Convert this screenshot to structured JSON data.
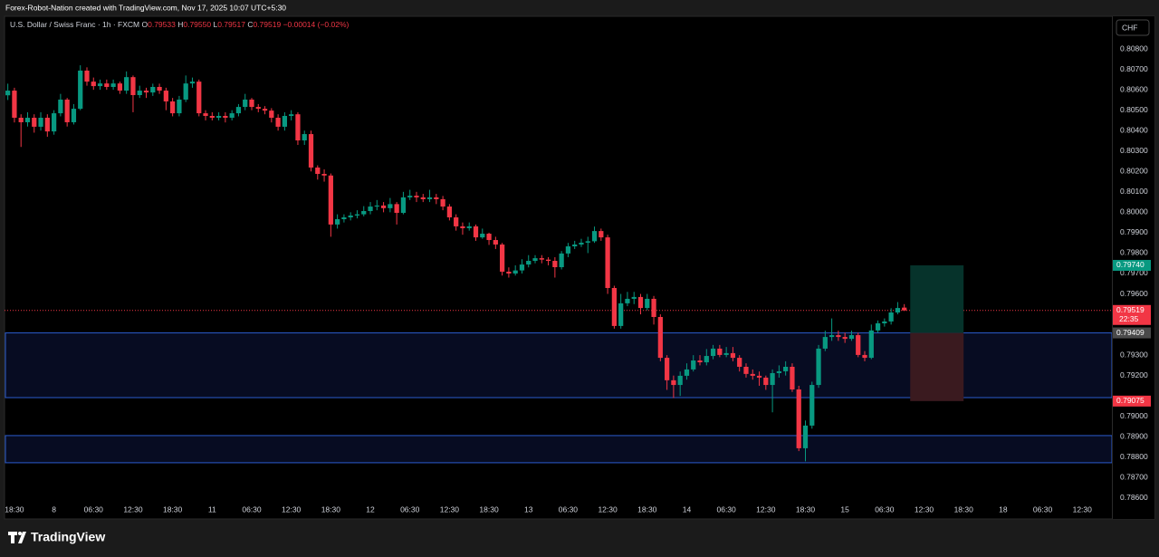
{
  "chart_data": {
    "type": "candlestick",
    "watermark": "Forex-Robot-Nation created with TradingView.com, Nov 17, 2025 10:07 UTC+5:30",
    "legend": {
      "symbol": "U.S. Dollar / Swiss Franc · 1h · FXCM",
      "o": "O",
      "h": "H",
      "l": "L",
      "c": "C",
      "high_label": "0.79550",
      "change": "−0.00014 (−0.02%)"
    },
    "currency": "CHF",
    "countdown": "22:35",
    "brand": "TradingView",
    "up_color": "#089981",
    "down_color": "#f23645",
    "ylim": [
      0.78502,
      0.8096
    ],
    "yticks": [
      {
        "value": 0.808,
        "label": "0.80800"
      },
      {
        "value": 0.807,
        "label": "0.80700"
      },
      {
        "value": 0.806,
        "label": "0.80600"
      },
      {
        "value": 0.805,
        "label": "0.80500"
      },
      {
        "value": 0.804,
        "label": "0.80400"
      },
      {
        "value": 0.803,
        "label": "0.80300"
      },
      {
        "value": 0.802,
        "label": "0.80200"
      },
      {
        "value": 0.801,
        "label": "0.80100"
      },
      {
        "value": 0.8,
        "label": "0.80000"
      },
      {
        "value": 0.799,
        "label": "0.79900"
      },
      {
        "value": 0.798,
        "label": "0.79800"
      },
      {
        "value": 0.797,
        "label": "0.79700"
      },
      {
        "value": 0.796,
        "label": "0.79600"
      },
      {
        "value": 0.793,
        "label": "0.79300"
      },
      {
        "value": 0.792,
        "label": "0.79200"
      },
      {
        "value": 0.79,
        "label": "0.79000"
      },
      {
        "value": 0.789,
        "label": "0.78900"
      },
      {
        "value": 0.788,
        "label": "0.78800"
      },
      {
        "value": 0.787,
        "label": "0.78700"
      },
      {
        "value": 0.786,
        "label": "0.78600"
      }
    ],
    "zones": [
      {
        "top": 0.79409,
        "bottom": 0.79092
      },
      {
        "top": 0.78906,
        "bottom": 0.78773
      }
    ],
    "position": {
      "target": {
        "value": 0.7974,
        "label": "0.79740"
      },
      "entry": 0.79409,
      "stop": 0.79075
    },
    "categories": [
      null,
      "18:30",
      null,
      null,
      null,
      null,
      null,
      "8",
      null,
      null,
      null,
      null,
      null,
      "06:30",
      null,
      null,
      null,
      null,
      null,
      "12:30",
      null,
      null,
      null,
      null,
      null,
      "18:30",
      null,
      null,
      null,
      null,
      null,
      "11",
      null,
      null,
      null,
      null,
      null,
      "06:30",
      null,
      null,
      null,
      null,
      null,
      "12:30",
      null,
      null,
      null,
      null,
      null,
      "18:30",
      null,
      null,
      null,
      null,
      null,
      "12",
      null,
      null,
      null,
      null,
      null,
      "06:30",
      null,
      null,
      null,
      null,
      null,
      "12:30",
      null,
      null,
      null,
      null,
      null,
      "18:30",
      null,
      null,
      null,
      null,
      null,
      "13",
      null,
      null,
      null,
      null,
      null,
      "06:30",
      null,
      null,
      null,
      null,
      null,
      "12:30",
      null,
      null,
      null,
      null,
      null,
      "18:30",
      null,
      null,
      null,
      null,
      null,
      "14",
      null,
      null,
      null,
      null,
      null,
      "06:30",
      null,
      null,
      null,
      null,
      null,
      "12:30",
      null,
      null,
      null,
      null,
      null,
      "18:30",
      null,
      null,
      null,
      null,
      null,
      "15",
      null,
      null,
      null,
      null,
      null,
      "06:30",
      null,
      null,
      null,
      null,
      null,
      "12:30",
      null,
      null,
      null,
      null,
      null,
      "18:30",
      null,
      null,
      null,
      null,
      null,
      "18",
      null,
      null,
      null,
      null,
      null,
      "06:30",
      null,
      null,
      null,
      null,
      null,
      "12:30",
      null,
      null,
      null,
      null
    ],
    "open": [
      0.80573,
      0.80596,
      0.80463,
      0.80441,
      0.80463,
      0.80419,
      0.80463,
      0.80396,
      0.80485,
      0.80552,
      0.80441,
      0.80507,
      0.80694,
      0.8064,
      0.80618,
      0.80631,
      0.80614,
      0.80631,
      0.80596,
      0.80662,
      0.80574,
      0.80596,
      0.80587,
      0.80614,
      0.80596,
      0.80543,
      0.80485,
      0.80552,
      0.80631,
      0.8064,
      0.80485,
      0.80472,
      0.80463,
      0.80472,
      0.80463,
      0.80485,
      0.80516,
      0.80552,
      0.80516,
      0.80507,
      0.80498,
      0.80463,
      0.80419,
      0.80472,
      0.8048,
      0.80352,
      0.80383,
      0.80219,
      0.80188,
      0.8018,
      0.7994,
      0.79966,
      0.79975,
      0.79984,
      0.7999,
      0.80006,
      0.80028,
      0.80033,
      0.8002,
      0.8004,
      0.79997,
      0.80073,
      0.80081,
      0.80073,
      0.80064,
      0.80073,
      0.80064,
      0.80028,
      0.79975,
      0.79931,
      0.79922,
      0.79931,
      0.79877,
      0.79895,
      0.79864,
      0.79842,
      0.79709,
      0.797,
      0.79715,
      0.79744,
      0.79762,
      0.79775,
      0.79768,
      0.79762,
      0.79731,
      0.79798,
      0.79833,
      0.79842,
      0.79851,
      0.79858,
      0.79908,
      0.79877,
      0.79629,
      0.79443,
      0.79554,
      0.79576,
      0.79585,
      0.79531,
      0.79576,
      0.79487,
      0.79287,
      0.79177,
      0.79154,
      0.79199,
      0.7923,
      0.79274,
      0.79265,
      0.79296,
      0.79332,
      0.79301,
      0.7931,
      0.79287,
      0.79243,
      0.79208,
      0.79199,
      0.7919,
      0.79154,
      0.79212,
      0.79221,
      0.79243,
      0.79132,
      0.78844,
      0.78955,
      0.79154,
      0.79332,
      0.79389,
      0.79398,
      0.79389,
      0.7938,
      0.79398,
      0.79301,
      0.79287,
      0.79421,
      0.79456,
      0.79465,
      0.79509,
      0.79533,
      null,
      null,
      null,
      null,
      null,
      null,
      null,
      null,
      null,
      null,
      null,
      null,
      null,
      null,
      null,
      null,
      null,
      null,
      null,
      null,
      null,
      null,
      null,
      null,
      null,
      null,
      null,
      null,
      null,
      null,
      null
    ],
    "high": [
      0.8063,
      0.8061,
      0.8048,
      0.8049,
      0.8048,
      0.8049,
      0.8048,
      0.805,
      0.8058,
      0.8056,
      0.8053,
      0.8072,
      0.8071,
      0.8066,
      0.8065,
      0.8065,
      0.8065,
      0.8064,
      0.8069,
      0.8067,
      0.8062,
      0.8061,
      0.8063,
      0.8063,
      0.8061,
      0.8056,
      0.8057,
      0.8067,
      0.8066,
      0.8065,
      0.805,
      0.8049,
      0.8049,
      0.8049,
      0.805,
      0.8053,
      0.8058,
      0.8056,
      0.8053,
      0.8052,
      0.8051,
      0.8048,
      0.8049,
      0.805,
      0.8049,
      0.804,
      0.804,
      0.8023,
      0.8021,
      0.8019,
      0.7999,
      0.7999,
      0.8,
      0.8001,
      0.8003,
      0.8005,
      0.8006,
      0.8005,
      0.8007,
      0.8005,
      0.801,
      0.8011,
      0.801,
      0.8009,
      0.8011,
      0.8009,
      0.8008,
      0.8004,
      0.7999,
      0.7995,
      0.7995,
      0.7994,
      0.7992,
      0.799,
      0.7988,
      0.7985,
      0.7973,
      0.7974,
      0.7977,
      0.7979,
      0.7979,
      0.7979,
      0.7978,
      0.7978,
      0.7981,
      0.7985,
      0.7986,
      0.7987,
      0.7988,
      0.7993,
      0.7992,
      0.7989,
      0.7964,
      0.796,
      0.7961,
      0.7961,
      0.796,
      0.796,
      0.7959,
      0.795,
      0.793,
      0.792,
      0.7922,
      0.7926,
      0.793,
      0.793,
      0.7933,
      0.7935,
      0.7935,
      0.7934,
      0.7934,
      0.793,
      0.7926,
      0.7923,
      0.7922,
      0.792,
      0.7923,
      0.7925,
      0.7927,
      0.7926,
      0.7915,
      0.7898,
      0.7917,
      0.7935,
      0.7942,
      0.7948,
      0.7942,
      0.7941,
      0.7942,
      0.7941,
      0.7932,
      0.7945,
      0.7947,
      0.7948,
      0.7953,
      0.7956,
      0.7955,
      null,
      null,
      null,
      null,
      null,
      null,
      null,
      null,
      null,
      null,
      null,
      null,
      null,
      null,
      null,
      null,
      null,
      null,
      null,
      null,
      null,
      null,
      null,
      null,
      null,
      null,
      null,
      null,
      null,
      null,
      null
    ],
    "low": [
      0.8055,
      0.8044,
      0.8032,
      0.8042,
      0.8039,
      0.804,
      0.8037,
      0.8038,
      0.8047,
      0.8042,
      0.8043,
      0.805,
      0.8062,
      0.806,
      0.806,
      0.806,
      0.806,
      0.8058,
      0.8058,
      0.8049,
      0.8056,
      0.8056,
      0.8057,
      0.8058,
      0.805,
      0.8047,
      0.8047,
      0.8054,
      0.8061,
      0.8047,
      0.8045,
      0.8045,
      0.8045,
      0.8044,
      0.8045,
      0.8047,
      0.805,
      0.805,
      0.8049,
      0.8048,
      0.8044,
      0.804,
      0.804,
      0.8045,
      0.8033,
      0.8033,
      0.802,
      0.8016,
      0.8015,
      0.7988,
      0.7992,
      0.7995,
      0.7996,
      0.7997,
      0.7998,
      0.7999,
      0.8001,
      0.8,
      0.8,
      0.7994,
      0.7999,
      0.8006,
      0.8005,
      0.8005,
      0.8005,
      0.8004,
      0.8001,
      0.7996,
      0.7991,
      0.7989,
      0.7991,
      0.7986,
      0.7987,
      0.7984,
      0.7982,
      0.7969,
      0.7968,
      0.7969,
      0.797,
      0.7973,
      0.7975,
      0.7975,
      0.7974,
      0.7968,
      0.7972,
      0.7978,
      0.7982,
      0.7983,
      0.798,
      0.7985,
      0.7986,
      0.796,
      0.7943,
      0.7943,
      0.7954,
      0.7955,
      0.795,
      0.7952,
      0.7945,
      0.7927,
      0.7913,
      0.7909,
      0.791,
      0.7918,
      0.7922,
      0.7925,
      0.7925,
      0.7928,
      0.7929,
      0.7929,
      0.7927,
      0.7922,
      0.7919,
      0.7918,
      0.7915,
      0.7913,
      0.7902,
      0.7919,
      0.792,
      0.7912,
      0.7883,
      0.7878,
      0.7894,
      0.7914,
      0.7932,
      0.7937,
      0.7937,
      0.7936,
      0.7937,
      0.7929,
      0.7927,
      0.7928,
      0.7941,
      0.7944,
      0.7945,
      0.795,
      0.79517,
      null,
      null,
      null,
      null,
      null,
      null,
      null,
      null,
      null,
      null,
      null,
      null,
      null,
      null,
      null,
      null,
      null,
      null,
      null,
      null,
      null,
      null,
      null,
      null,
      null,
      null,
      null,
      null,
      null,
      null,
      null
    ],
    "close": [
      0.80596,
      0.80463,
      0.80441,
      0.80463,
      0.80419,
      0.80463,
      0.80396,
      0.80485,
      0.80552,
      0.80441,
      0.80507,
      0.80694,
      0.8064,
      0.80618,
      0.80631,
      0.80614,
      0.80631,
      0.80596,
      0.80662,
      0.80574,
      0.80596,
      0.80587,
      0.80614,
      0.80596,
      0.80543,
      0.80485,
      0.80552,
      0.80631,
      0.8064,
      0.80485,
      0.80472,
      0.80463,
      0.80472,
      0.80463,
      0.80485,
      0.80516,
      0.80552,
      0.80516,
      0.80507,
      0.80498,
      0.80463,
      0.80419,
      0.80472,
      0.8048,
      0.80352,
      0.80383,
      0.80219,
      0.80188,
      0.8018,
      0.7994,
      0.79966,
      0.79975,
      0.79984,
      0.7999,
      0.80006,
      0.80028,
      0.80033,
      0.8002,
      0.8004,
      0.79997,
      0.80073,
      0.80081,
      0.80073,
      0.80064,
      0.80073,
      0.80064,
      0.80028,
      0.79975,
      0.79931,
      0.79922,
      0.79931,
      0.79877,
      0.79895,
      0.79864,
      0.79842,
      0.79709,
      0.797,
      0.79715,
      0.79744,
      0.79762,
      0.79775,
      0.79768,
      0.79762,
      0.79731,
      0.79798,
      0.79833,
      0.79842,
      0.79851,
      0.79858,
      0.79908,
      0.79877,
      0.79629,
      0.79443,
      0.79554,
      0.79576,
      0.79585,
      0.79531,
      0.79576,
      0.79487,
      0.79287,
      0.79177,
      0.79154,
      0.79199,
      0.7923,
      0.79274,
      0.79265,
      0.79296,
      0.79332,
      0.79301,
      0.7931,
      0.79287,
      0.79243,
      0.79208,
      0.79199,
      0.7919,
      0.79154,
      0.79212,
      0.79221,
      0.79243,
      0.79132,
      0.78844,
      0.78955,
      0.79154,
      0.79332,
      0.79389,
      0.79398,
      0.79389,
      0.7938,
      0.79398,
      0.79301,
      0.79287,
      0.79421,
      0.79456,
      0.79465,
      0.79509,
      0.79531,
      0.79519,
      null,
      null,
      null,
      null,
      null,
      null,
      null,
      null,
      null,
      null,
      null,
      null,
      null,
      null,
      null,
      null,
      null,
      null,
      null,
      null,
      null,
      null,
      null,
      null,
      null,
      null,
      null,
      null,
      null,
      null,
      null
    ]
  }
}
